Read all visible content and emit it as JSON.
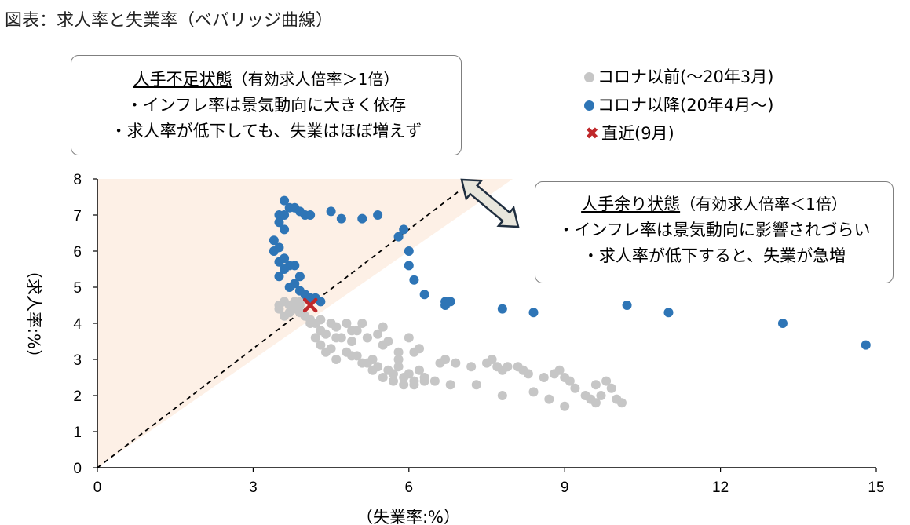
{
  "figure_title": "図表：求人率と失業率（ベバリッジ曲線）",
  "colors": {
    "pre_covid": "#c6c6c6",
    "post_covid": "#2e75b6",
    "latest": "#c0282b",
    "shortage_area": "#fdf0e6",
    "arrow_fill": "#e8e6dc",
    "arrow_stroke": "#1f2e3f"
  },
  "annotations": {
    "shortage": {
      "heading": "人手不足状態",
      "heading_suffix": "（有効求人倍率＞1倍）",
      "line1": "・インフレ率は景気動向に大きく依存",
      "line2": "・求人率が低下しても、失業はほぼ増えず"
    },
    "surplus": {
      "heading": "人手余り状態",
      "heading_suffix": "（有効求人倍率＜1倍）",
      "line1": "・インフレ率は景気動向に影響されづらい",
      "line2": "・求人率が低下すると、失業が急増"
    }
  },
  "legend": {
    "pre_covid": "コロナ以前(～20年3月)",
    "post_covid": "コロナ以降(20年4月～)",
    "latest": "直近(9月)"
  },
  "chart_data": {
    "type": "scatter",
    "xlabel": "（失業率:%）",
    "ylabel": "（求人率:%）",
    "xlim": [
      0,
      15
    ],
    "ylim": [
      0,
      8
    ],
    "xticks": [
      0,
      3,
      6,
      9,
      12,
      15
    ],
    "yticks": [
      0,
      1,
      2,
      3,
      4,
      5,
      6,
      7,
      8
    ],
    "reference_line": "y = x",
    "shaded_region": "y > x",
    "series": [
      {
        "name": "コロナ以前(～20年3月)",
        "points": [
          [
            3.5,
            4.4
          ],
          [
            3.6,
            4.6
          ],
          [
            3.7,
            4.5
          ],
          [
            3.8,
            4.6
          ],
          [
            3.9,
            4.5
          ],
          [
            3.6,
            4.2
          ],
          [
            3.7,
            4.3
          ],
          [
            3.5,
            4.5
          ],
          [
            3.8,
            4.4
          ],
          [
            3.9,
            4.3
          ],
          [
            4.0,
            4.2
          ],
          [
            4.1,
            4.1
          ],
          [
            4.2,
            4.0
          ],
          [
            4.3,
            3.8
          ],
          [
            4.2,
            3.6
          ],
          [
            4.3,
            3.4
          ],
          [
            4.4,
            3.2
          ],
          [
            4.5,
            3.3
          ],
          [
            4.5,
            4.0
          ],
          [
            4.6,
            3.9
          ],
          [
            4.7,
            3.6
          ],
          [
            4.8,
            3.2
          ],
          [
            4.8,
            4.0
          ],
          [
            4.9,
            3.5
          ],
          [
            5.0,
            3.1
          ],
          [
            5.0,
            3.8
          ],
          [
            5.1,
            4.0
          ],
          [
            5.2,
            2.9
          ],
          [
            5.2,
            3.6
          ],
          [
            5.3,
            3.0
          ],
          [
            5.4,
            2.8
          ],
          [
            5.4,
            3.7
          ],
          [
            5.5,
            3.9
          ],
          [
            5.6,
            2.7
          ],
          [
            5.6,
            3.5
          ],
          [
            5.7,
            2.6
          ],
          [
            5.8,
            2.8
          ],
          [
            5.8,
            3.2
          ],
          [
            5.9,
            2.5
          ],
          [
            6.0,
            2.6
          ],
          [
            6.0,
            3.6
          ],
          [
            6.1,
            2.4
          ],
          [
            6.2,
            3.3
          ],
          [
            6.2,
            2.7
          ],
          [
            6.3,
            2.5
          ],
          [
            6.5,
            2.4
          ],
          [
            6.6,
            2.9
          ],
          [
            6.7,
            3.0
          ],
          [
            6.8,
            2.3
          ],
          [
            6.9,
            2.9
          ],
          [
            7.3,
            2.3
          ],
          [
            7.2,
            2.8
          ],
          [
            7.5,
            2.9
          ],
          [
            7.6,
            3.0
          ],
          [
            7.7,
            2.8
          ],
          [
            7.8,
            2.7
          ],
          [
            7.8,
            2.0
          ],
          [
            7.9,
            2.8
          ],
          [
            8.1,
            2.8
          ],
          [
            8.2,
            2.7
          ],
          [
            8.3,
            2.6
          ],
          [
            8.4,
            2.1
          ],
          [
            8.6,
            2.5
          ],
          [
            8.7,
            1.9
          ],
          [
            8.8,
            2.6
          ],
          [
            8.9,
            2.7
          ],
          [
            9.0,
            1.7
          ],
          [
            9.0,
            2.5
          ],
          [
            9.1,
            2.4
          ],
          [
            9.2,
            2.2
          ],
          [
            9.4,
            2.0
          ],
          [
            9.5,
            1.9
          ],
          [
            9.6,
            1.8
          ],
          [
            9.7,
            2.0
          ],
          [
            9.8,
            2.4
          ],
          [
            9.9,
            2.2
          ],
          [
            10.0,
            1.9
          ],
          [
            10.1,
            1.8
          ],
          [
            9.6,
            2.3
          ],
          [
            3.9,
            4.6
          ],
          [
            4.1,
            4.0
          ],
          [
            4.4,
            3.7
          ],
          [
            4.6,
            3.0
          ],
          [
            4.9,
            3.1
          ],
          [
            5.1,
            2.9
          ],
          [
            5.3,
            2.7
          ],
          [
            5.5,
            2.5
          ],
          [
            5.7,
            2.4
          ],
          [
            5.9,
            2.3
          ],
          [
            6.1,
            2.3
          ],
          [
            6.3,
            2.4
          ],
          [
            4.3,
            4.1
          ],
          [
            4.6,
            3.6
          ],
          [
            4.9,
            3.8
          ],
          [
            5.2,
            3.6
          ],
          [
            5.5,
            3.4
          ],
          [
            5.8,
            3.0
          ],
          [
            6.1,
            3.2
          ]
        ]
      },
      {
        "name": "コロナ以降(20年4月～)",
        "points": [
          [
            3.6,
            7.4
          ],
          [
            3.5,
            7.0
          ],
          [
            3.5,
            6.8
          ],
          [
            3.4,
            6.3
          ],
          [
            3.5,
            6.1
          ],
          [
            3.4,
            6.0
          ],
          [
            3.5,
            5.7
          ],
          [
            3.6,
            5.8
          ],
          [
            3.6,
            5.5
          ],
          [
            3.7,
            5.6
          ],
          [
            3.8,
            5.6
          ],
          [
            3.9,
            5.3
          ],
          [
            3.8,
            5.1
          ],
          [
            3.9,
            4.9
          ],
          [
            4.0,
            4.8
          ],
          [
            4.1,
            4.7
          ],
          [
            4.2,
            4.7
          ],
          [
            4.3,
            4.6
          ],
          [
            3.7,
            5.0
          ],
          [
            3.5,
            5.3
          ],
          [
            3.6,
            6.6
          ],
          [
            3.6,
            7.0
          ],
          [
            3.7,
            7.2
          ],
          [
            3.8,
            7.2
          ],
          [
            3.9,
            7.1
          ],
          [
            4.0,
            7.0
          ],
          [
            4.1,
            7.0
          ],
          [
            4.5,
            7.1
          ],
          [
            4.7,
            6.9
          ],
          [
            5.1,
            6.9
          ],
          [
            5.4,
            7.0
          ],
          [
            5.8,
            6.4
          ],
          [
            5.9,
            6.6
          ],
          [
            6.0,
            6.0
          ],
          [
            6.0,
            5.6
          ],
          [
            6.1,
            5.2
          ],
          [
            6.3,
            4.8
          ],
          [
            6.7,
            4.6
          ],
          [
            6.7,
            4.5
          ],
          [
            6.8,
            4.6
          ],
          [
            7.8,
            4.4
          ],
          [
            8.4,
            4.3
          ],
          [
            10.2,
            4.5
          ],
          [
            11.0,
            4.3
          ],
          [
            13.2,
            4.0
          ],
          [
            14.8,
            3.4
          ]
        ]
      },
      {
        "name": "直近(9月)",
        "points": [
          [
            4.1,
            4.5
          ]
        ]
      }
    ]
  }
}
